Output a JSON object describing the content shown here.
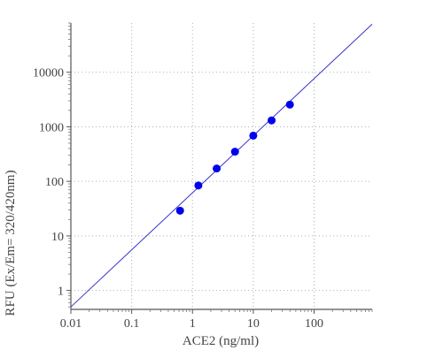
{
  "chart_data": {
    "type": "scatter",
    "title": "",
    "xlabel": "ACE2 (ng/ml)",
    "ylabel": "RFU (Ex/Em= 320/420nm)",
    "x_scale": "log",
    "y_scale": "log",
    "xlim": [
      0.01,
      900
    ],
    "ylim": [
      0.45,
      80000
    ],
    "x_ticks": [
      {
        "value": 0.01,
        "label": "0.01"
      },
      {
        "value": 0.1,
        "label": "0.1"
      },
      {
        "value": 1,
        "label": "1"
      },
      {
        "value": 10,
        "label": "10"
      },
      {
        "value": 100,
        "label": "100"
      }
    ],
    "y_ticks": [
      {
        "value": 1,
        "label": "1"
      },
      {
        "value": 10,
        "label": "10"
      },
      {
        "value": 100,
        "label": "100"
      },
      {
        "value": 1000,
        "label": "1000"
      },
      {
        "value": 10000,
        "label": "10000"
      }
    ],
    "grid": true,
    "grid_style": "dotted",
    "series": [
      {
        "kind": "points",
        "color": "#0000ee",
        "x": [
          0.625,
          1.25,
          2.5,
          5,
          10,
          20,
          40
        ],
        "y": [
          29,
          84,
          172,
          350,
          690,
          1310,
          2550
        ]
      },
      {
        "kind": "fit-line",
        "color": "#3333cc",
        "x": [
          0.01,
          900
        ],
        "y": [
          0.5,
          76000
        ]
      }
    ]
  }
}
